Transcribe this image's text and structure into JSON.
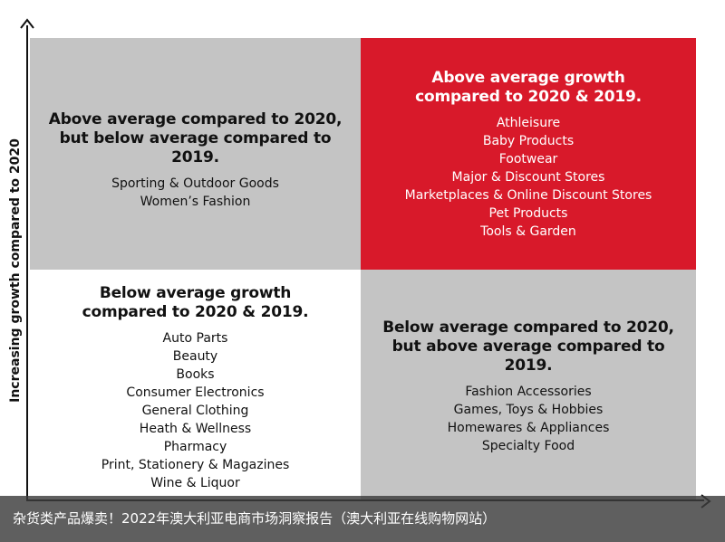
{
  "y_axis_label": "Increasing growth compared to 2020",
  "colors": {
    "neutral_quadrant": "#c4c4c4",
    "top_right_quadrant": "#d8192a",
    "bottom_left_quadrant": "#ffffff"
  },
  "quadrants": {
    "top_left": {
      "heading_line1": "Above average compared to 2020,",
      "heading_line2": "but below average compared to 2019.",
      "items": [
        "Sporting & Outdoor Goods",
        "Women’s Fashion"
      ]
    },
    "top_right": {
      "heading_line1": "Above average growth",
      "heading_line2": "compared to 2020 & 2019.",
      "items": [
        "Athleisure",
        "Baby Products",
        "Footwear",
        "Major & Discount Stores",
        "Marketplaces & Online Discount Stores",
        "Pet Products",
        "Tools & Garden"
      ]
    },
    "bottom_left": {
      "heading_line1": "Below average growth",
      "heading_line2": "compared to 2020 & 2019.",
      "items": [
        "Auto Parts",
        "Beauty",
        "Books",
        "Consumer Electronics",
        "General Clothing",
        "Heath & Wellness",
        "Pharmacy",
        "Print, Stationery & Magazines",
        "Wine & Liquor"
      ]
    },
    "bottom_right": {
      "heading_line1": "Below average compared to 2020,",
      "heading_line2": "but above average compared to 2019.",
      "items": [
        "Fashion Accessories",
        "Games, Toys & Hobbies",
        "Homewares & Appliances",
        "Specialty Food"
      ]
    }
  },
  "caption": "杂货类产品爆卖！2022年澳大利亚电商市场洞察报告（澳大利亚在线购物网站）"
}
